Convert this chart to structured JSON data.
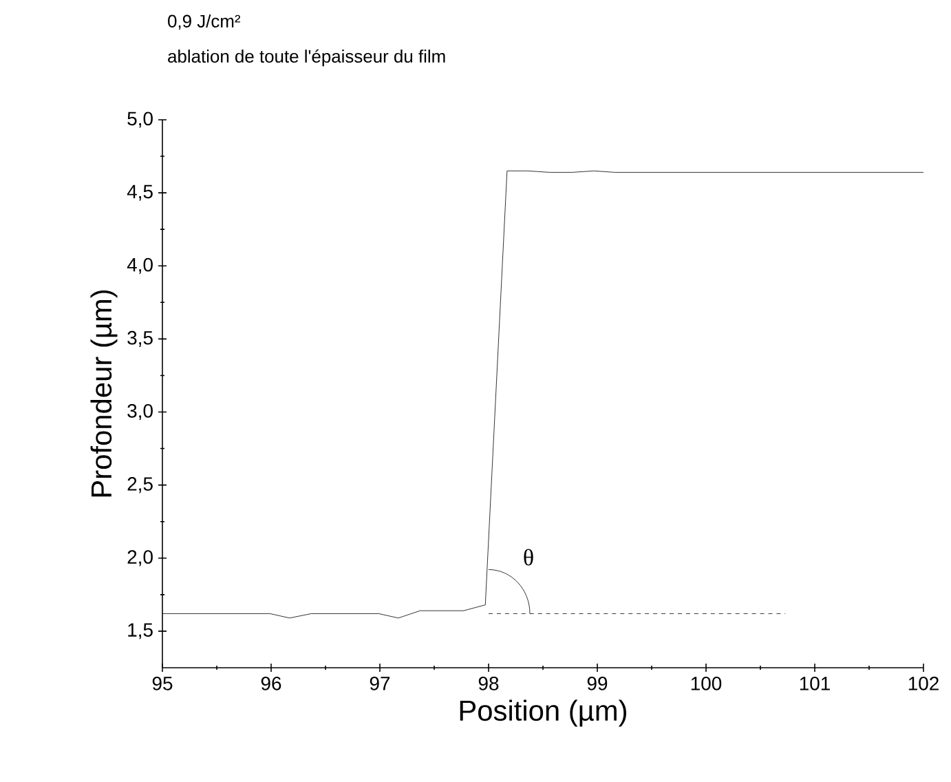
{
  "chart_data": {
    "type": "line",
    "title": "0,9 J/cm²",
    "subtitle": "ablation de toute l'épaisseur du film",
    "xlabel": "Position (µm)",
    "ylabel": "Profondeur (µm)",
    "xlim": [
      95,
      102
    ],
    "ylim": [
      1.25,
      5.0
    ],
    "xticks": [
      95,
      96,
      97,
      98,
      99,
      100,
      101,
      102
    ],
    "yticks": [
      {
        "value": 1.5,
        "label": "1,5"
      },
      {
        "value": 2.0,
        "label": "2,0"
      },
      {
        "value": 2.5,
        "label": "2,5"
      },
      {
        "value": 3.0,
        "label": "3,0"
      },
      {
        "value": 3.5,
        "label": "3,5"
      },
      {
        "value": 4.0,
        "label": "4,0"
      },
      {
        "value": 4.5,
        "label": "4,5"
      },
      {
        "value": 5.0,
        "label": "5,0"
      }
    ],
    "series": [
      {
        "color": "#000000",
        "x": [
          95.0,
          95.99,
          96.17,
          96.37,
          96.99,
          97.17,
          97.37,
          97.77,
          97.97,
          98.17,
          98.36,
          98.56,
          98.77,
          98.97,
          99.16,
          102.0
        ],
        "values": [
          1.62,
          1.62,
          1.59,
          1.62,
          1.62,
          1.59,
          1.64,
          1.64,
          1.68,
          4.65,
          4.65,
          4.64,
          4.64,
          4.65,
          4.64,
          4.64
        ]
      },
      {
        "color": "#000000",
        "line_style": "dashed",
        "x": [
          98.0,
          100.73
        ],
        "values": [
          1.62,
          1.62
        ]
      }
    ],
    "annotations": [
      "θ"
    ]
  }
}
